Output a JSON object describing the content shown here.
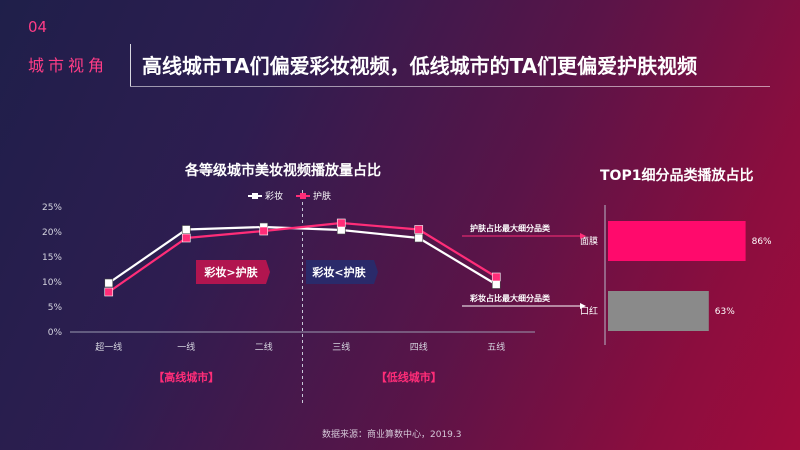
{
  "section": {
    "number": "04",
    "name": "城市视角"
  },
  "headline": "高线城市TA们偏爱彩妆视频，低线城市的TA们更偏爱护肤视频",
  "source": "数据来源：商业算数中心，2019.3",
  "colors": {
    "makeup": "#ffffff",
    "skincare": "#ff2d78",
    "bar_top": "#ff0a6c",
    "bar_second": "#8a8a8a"
  },
  "chart_data": [
    {
      "type": "line",
      "title": "各等级城市美妆视频播放量占比",
      "categories": [
        "超一线",
        "一线",
        "二线",
        "三线",
        "四线",
        "五线"
      ],
      "ylim": [
        0,
        25
      ],
      "yticks": [
        "0%",
        "5%",
        "10%",
        "15%",
        "20%",
        "25%"
      ],
      "series": [
        {
          "name": "彩妆",
          "values": [
            9.8,
            20.5,
            21.0,
            20.4,
            18.8,
            9.5
          ]
        },
        {
          "name": "护肤",
          "values": [
            8.0,
            18.8,
            20.2,
            21.8,
            20.5,
            11.0
          ]
        }
      ],
      "legend": "top",
      "annotations": {
        "left_box": "彩妆>护肤",
        "right_box": "彩妆<护肤",
        "high_group": "【高线城市】",
        "low_group": "【低线城市】"
      }
    },
    {
      "type": "bar",
      "title": "TOP1细分品类播放占比",
      "categories": [
        "面膜",
        "口红"
      ],
      "values": [
        86,
        63
      ],
      "value_labels": [
        "86%",
        "63%"
      ],
      "notes": [
        "护肤占比最大细分品类",
        "彩妆占比最大细分品类"
      ]
    }
  ]
}
